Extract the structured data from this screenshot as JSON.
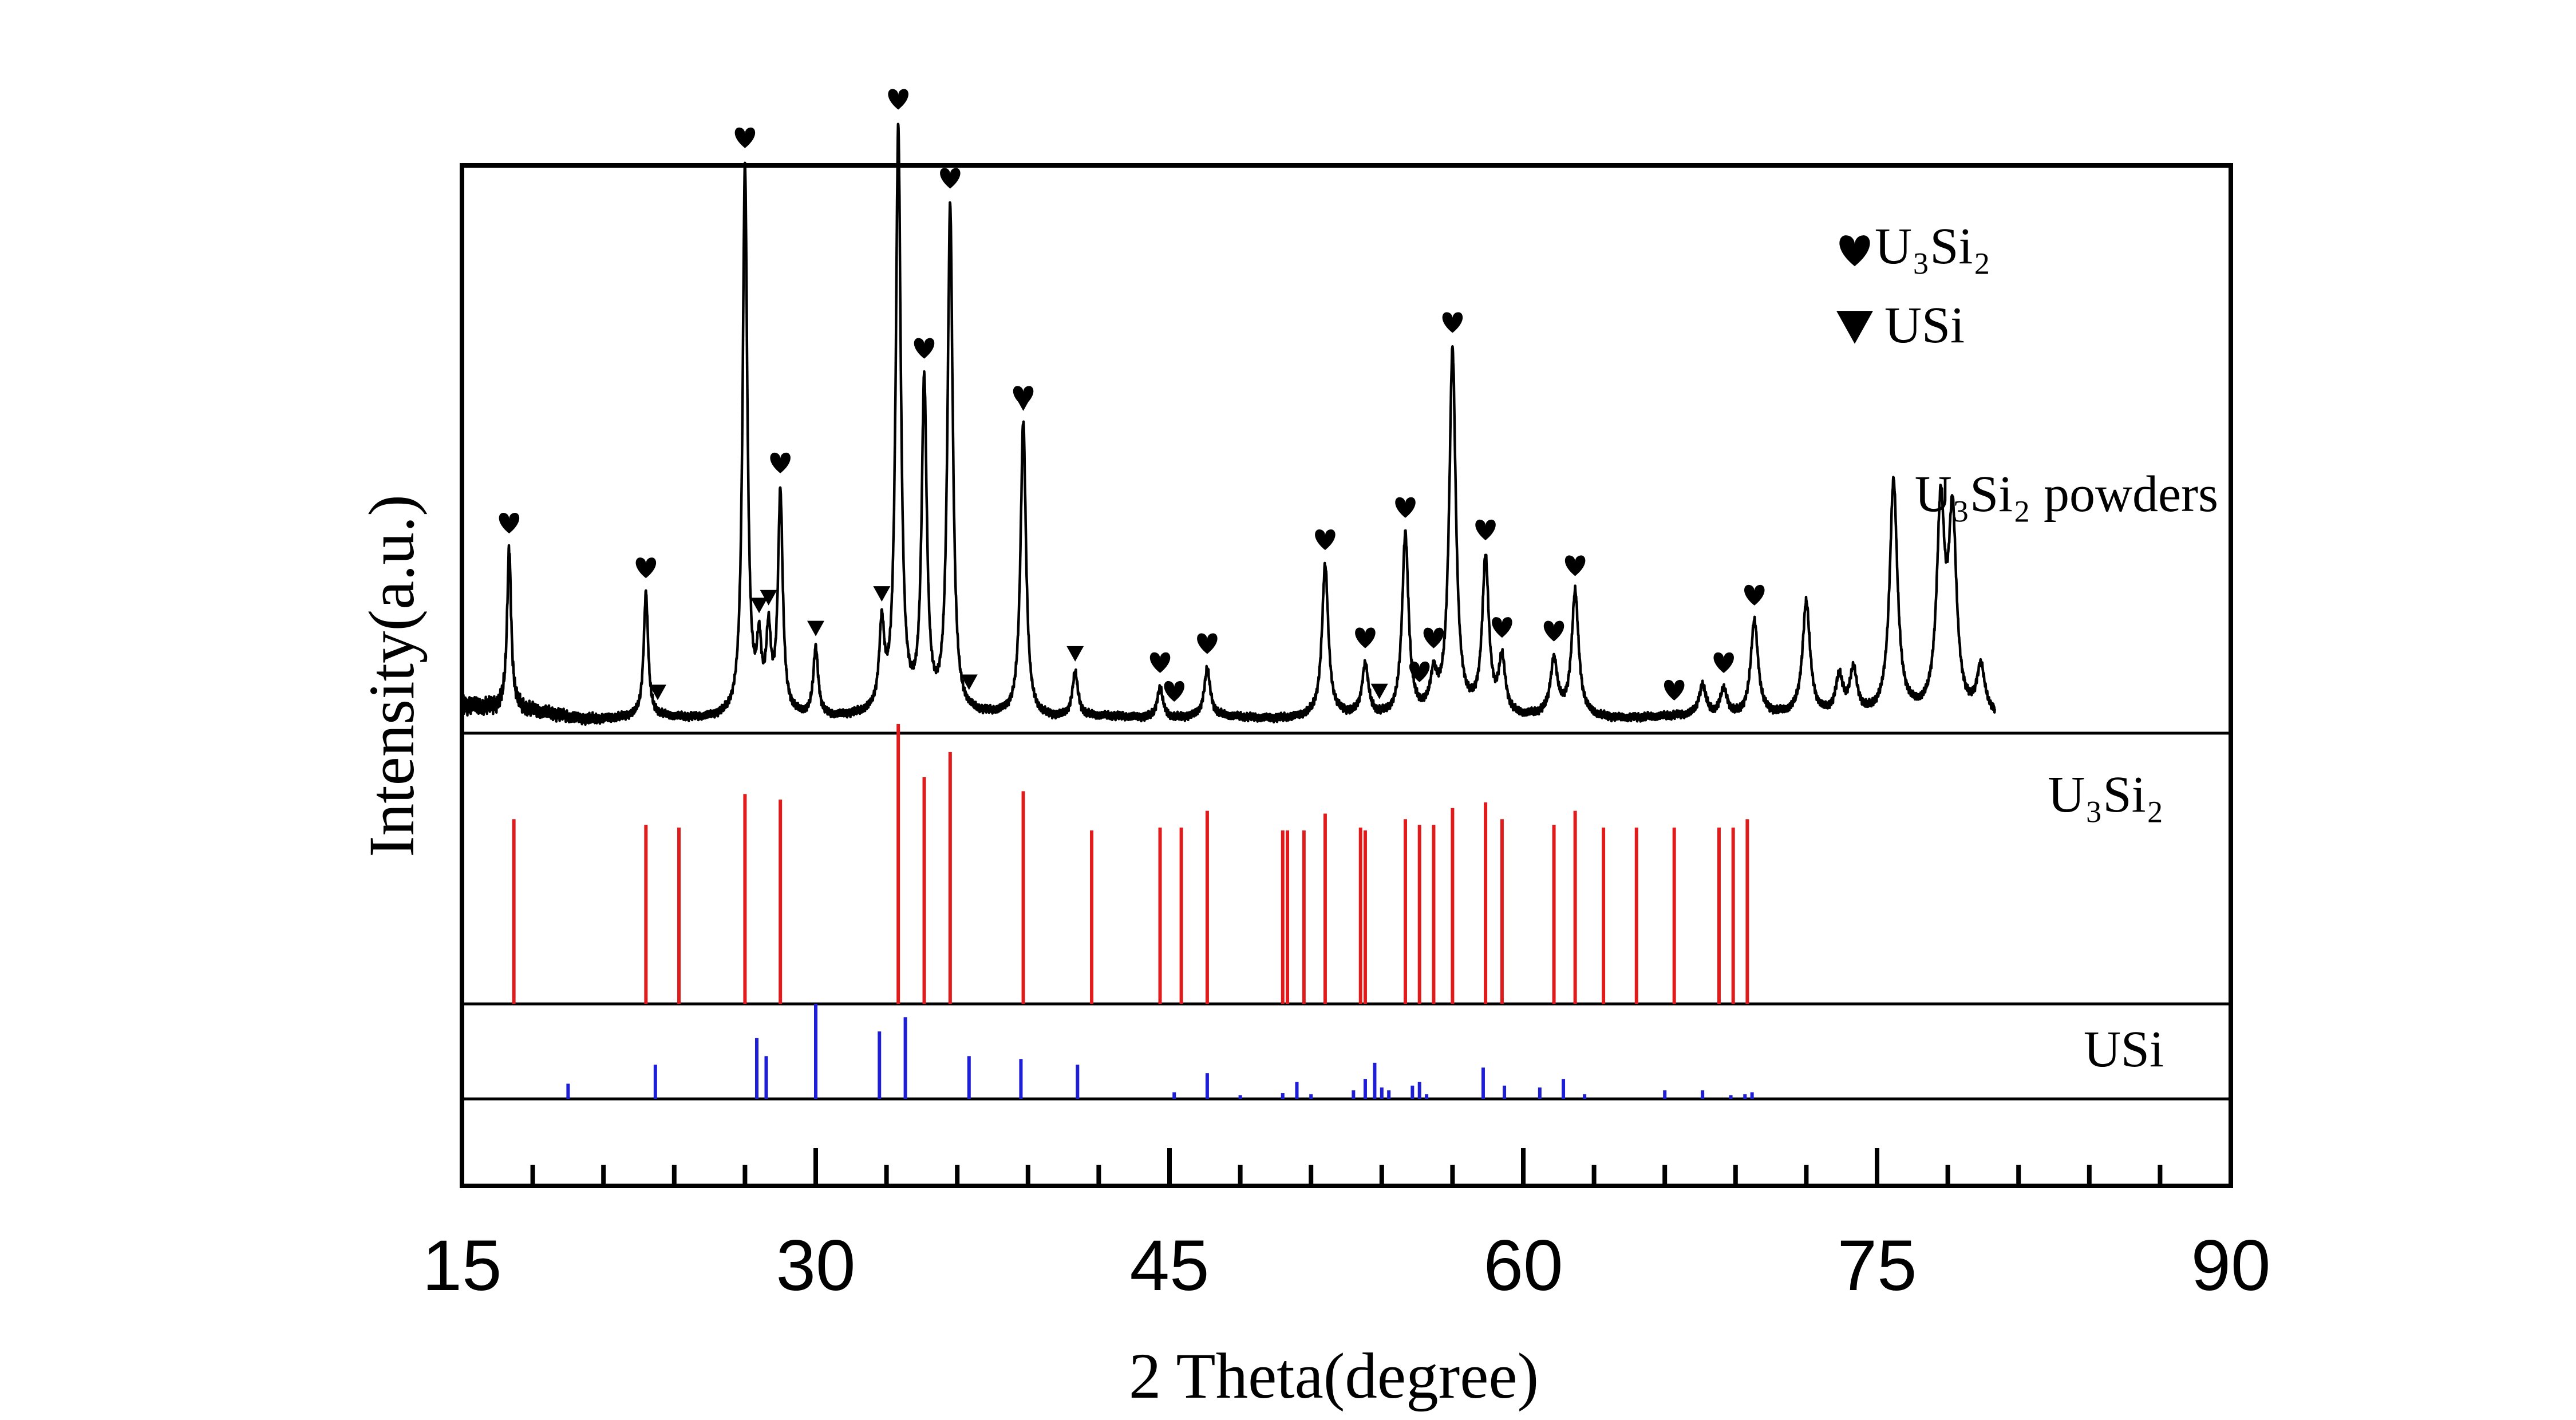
{
  "chart_data": {
    "type": "line",
    "xlabel": "2 Theta(degree)",
    "ylabel": "Intensity(a.u.)",
    "xlim": [
      15,
      90
    ],
    "xticks": [
      15,
      30,
      45,
      60,
      75,
      90
    ],
    "x_minor_step": 3,
    "legend": {
      "placement": "top-right",
      "entries": [
        {
          "marker": "heart",
          "label": "U₃Si₂"
        },
        {
          "marker": "triangle-down",
          "label": "USi"
        }
      ]
    },
    "panels": [
      {
        "name": "U₃Si₂ powders",
        "type": "line",
        "color": "#000000",
        "peaks": [
          {
            "x": 17.0,
            "h": 0.47
          },
          {
            "x": 22.8,
            "h": 0.36
          },
          {
            "x": 27.0,
            "h": 1.6
          },
          {
            "x": 27.6,
            "h": 0.18
          },
          {
            "x": 28.0,
            "h": 0.22
          },
          {
            "x": 28.5,
            "h": 0.64
          },
          {
            "x": 30.0,
            "h": 0.2
          },
          {
            "x": 32.8,
            "h": 0.24
          },
          {
            "x": 33.5,
            "h": 1.7
          },
          {
            "x": 34.6,
            "h": 0.96
          },
          {
            "x": 35.7,
            "h": 1.48
          },
          {
            "x": 38.8,
            "h": 0.86
          },
          {
            "x": 41.0,
            "h": 0.13
          },
          {
            "x": 44.6,
            "h": 0.09
          },
          {
            "x": 46.6,
            "h": 0.14
          },
          {
            "x": 51.6,
            "h": 0.44
          },
          {
            "x": 53.3,
            "h": 0.15
          },
          {
            "x": 55.0,
            "h": 0.53
          },
          {
            "x": 56.2,
            "h": 0.1
          },
          {
            "x": 57.0,
            "h": 1.06
          },
          {
            "x": 58.4,
            "h": 0.45
          },
          {
            "x": 59.1,
            "h": 0.16
          },
          {
            "x": 61.3,
            "h": 0.16
          },
          {
            "x": 62.2,
            "h": 0.36
          },
          {
            "x": 67.6,
            "h": 0.09
          },
          {
            "x": 68.5,
            "h": 0.08
          },
          {
            "x": 69.8,
            "h": 0.28
          },
          {
            "x": 72.0,
            "h": 0.33
          },
          {
            "x": 73.4,
            "h": 0.11
          },
          {
            "x": 74.0,
            "h": 0.13
          },
          {
            "x": 75.7,
            "h": 0.68
          },
          {
            "x": 77.7,
            "h": 0.59
          },
          {
            "x": 78.2,
            "h": 0.56
          },
          {
            "x": 79.4,
            "h": 0.14
          }
        ],
        "x_range": [
          15,
          80
        ],
        "heart_markers_x": [
          17.0,
          22.8,
          27.0,
          28.5,
          33.5,
          34.6,
          35.7,
          38.8,
          44.6,
          45.2,
          46.6,
          51.6,
          53.3,
          55.0,
          55.6,
          56.2,
          57.0,
          58.4,
          59.1,
          61.3,
          62.2,
          66.4,
          68.5,
          69.8
        ],
        "triangle_markers_x": [
          23.3,
          27.6,
          28.0,
          30.0,
          32.8,
          36.5,
          38.8,
          41.0,
          53.9
        ]
      },
      {
        "name": "U₃Si₂",
        "type": "stick",
        "color": "#e01b1b",
        "peaks": [
          {
            "x": 17.2,
            "h": 0.66
          },
          {
            "x": 22.8,
            "h": 0.64
          },
          {
            "x": 24.2,
            "h": 0.63
          },
          {
            "x": 27.0,
            "h": 0.75
          },
          {
            "x": 28.5,
            "h": 0.73
          },
          {
            "x": 33.5,
            "h": 1.0
          },
          {
            "x": 34.6,
            "h": 0.81
          },
          {
            "x": 35.7,
            "h": 0.9
          },
          {
            "x": 38.8,
            "h": 0.76
          },
          {
            "x": 41.7,
            "h": 0.62
          },
          {
            "x": 44.6,
            "h": 0.63
          },
          {
            "x": 45.5,
            "h": 0.63
          },
          {
            "x": 46.6,
            "h": 0.69
          },
          {
            "x": 49.8,
            "h": 0.62
          },
          {
            "x": 50.0,
            "h": 0.62
          },
          {
            "x": 50.7,
            "h": 0.62
          },
          {
            "x": 51.6,
            "h": 0.68
          },
          {
            "x": 53.1,
            "h": 0.63
          },
          {
            "x": 53.3,
            "h": 0.62
          },
          {
            "x": 55.0,
            "h": 0.66
          },
          {
            "x": 55.6,
            "h": 0.64
          },
          {
            "x": 56.2,
            "h": 0.64
          },
          {
            "x": 57.0,
            "h": 0.7
          },
          {
            "x": 58.4,
            "h": 0.72
          },
          {
            "x": 59.1,
            "h": 0.66
          },
          {
            "x": 61.3,
            "h": 0.64
          },
          {
            "x": 62.2,
            "h": 0.69
          },
          {
            "x": 63.4,
            "h": 0.63
          },
          {
            "x": 64.8,
            "h": 0.63
          },
          {
            "x": 66.4,
            "h": 0.63
          },
          {
            "x": 68.3,
            "h": 0.63
          },
          {
            "x": 68.9,
            "h": 0.63
          },
          {
            "x": 69.5,
            "h": 0.66
          }
        ]
      },
      {
        "name": "USi",
        "type": "stick",
        "color": "#1e1ed6",
        "peaks": [
          {
            "x": 19.5,
            "h": 0.16
          },
          {
            "x": 23.2,
            "h": 0.36
          },
          {
            "x": 27.5,
            "h": 0.64
          },
          {
            "x": 27.9,
            "h": 0.45
          },
          {
            "x": 30.0,
            "h": 1.0
          },
          {
            "x": 32.7,
            "h": 0.71
          },
          {
            "x": 33.8,
            "h": 0.86
          },
          {
            "x": 36.5,
            "h": 0.45
          },
          {
            "x": 38.7,
            "h": 0.42
          },
          {
            "x": 41.1,
            "h": 0.36
          },
          {
            "x": 45.2,
            "h": 0.07
          },
          {
            "x": 46.6,
            "h": 0.27
          },
          {
            "x": 48.0,
            "h": 0.04
          },
          {
            "x": 49.8,
            "h": 0.06
          },
          {
            "x": 50.4,
            "h": 0.18
          },
          {
            "x": 51.0,
            "h": 0.05
          },
          {
            "x": 52.8,
            "h": 0.09
          },
          {
            "x": 53.3,
            "h": 0.21
          },
          {
            "x": 53.7,
            "h": 0.38
          },
          {
            "x": 54.0,
            "h": 0.12
          },
          {
            "x": 54.3,
            "h": 0.09
          },
          {
            "x": 55.3,
            "h": 0.14
          },
          {
            "x": 55.6,
            "h": 0.18
          },
          {
            "x": 55.9,
            "h": 0.05
          },
          {
            "x": 58.3,
            "h": 0.33
          },
          {
            "x": 59.2,
            "h": 0.14
          },
          {
            "x": 60.7,
            "h": 0.12
          },
          {
            "x": 61.7,
            "h": 0.21
          },
          {
            "x": 62.6,
            "h": 0.05
          },
          {
            "x": 66.0,
            "h": 0.09
          },
          {
            "x": 67.6,
            "h": 0.09
          },
          {
            "x": 68.8,
            "h": 0.04
          },
          {
            "x": 69.4,
            "h": 0.05
          },
          {
            "x": 69.7,
            "h": 0.07
          }
        ]
      }
    ]
  }
}
